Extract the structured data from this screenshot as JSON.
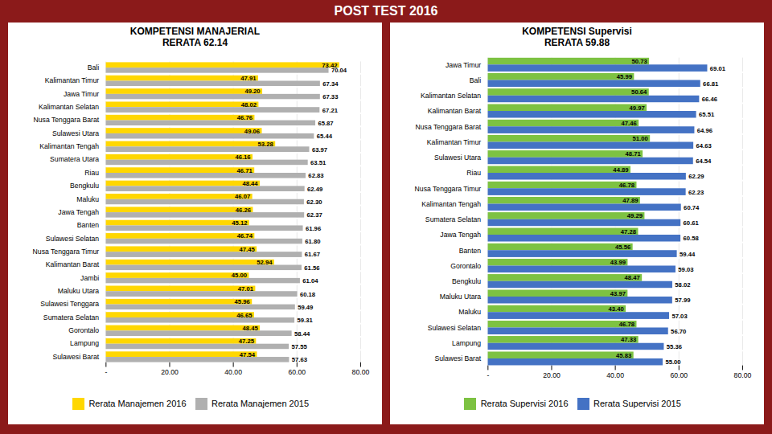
{
  "title": "POST TEST 2016",
  "background_color": "#8B1A1A",
  "chart_data": [
    {
      "type": "bar",
      "orientation": "horizontal",
      "title": "KOMPETENSI MANAJERIAL\nRERATA 62.14",
      "categories": [
        "Bali",
        "Kalimantan Timur",
        "Jawa Timur",
        "Kalimantan Selatan",
        "Nusa Tenggara Barat",
        "Sulawesi Utara",
        "Kalimantan Tengah",
        "Sumatera Utara",
        "Riau",
        "Bengkulu",
        "Maluku",
        "Jawa Tengah",
        "Banten",
        "Sulawesi Selatan",
        "Nusa Tenggara Timur",
        "Kalimantan Barat",
        "Jambi",
        "Maluku Utara",
        "Sulawesi Tenggara",
        "Sumatera Selatan",
        "Gorontalo",
        "Lampung",
        "Sulawesi Barat"
      ],
      "series": [
        {
          "name": "Rerata Manajemen 2016",
          "color": "#FFD700",
          "values": [
            73.42,
            47.91,
            49.2,
            48.02,
            46.76,
            49.06,
            53.28,
            46.16,
            46.71,
            48.44,
            46.07,
            46.26,
            45.12,
            46.74,
            47.45,
            52.94,
            45.0,
            47.01,
            45.96,
            46.65,
            48.45,
            47.25,
            47.54
          ],
          "value_labels": [
            "73.42",
            "47.91",
            "49.20",
            "48.02",
            "46.76",
            "49.06",
            "53.28",
            "46.16",
            "46.71",
            "48.44",
            "46.07",
            "46.26",
            "45.12",
            "46.74",
            "47.45",
            "52.94",
            "45.00",
            "47.01",
            "45.96",
            "46.65",
            "48.45",
            "47.25",
            "47.54"
          ]
        },
        {
          "name": "Rerata Manajemen 2015",
          "color": "#B0B0B0",
          "values": [
            70.04,
            67.34,
            67.33,
            67.21,
            65.87,
            65.44,
            63.97,
            63.51,
            62.83,
            62.49,
            62.3,
            62.37,
            61.96,
            61.8,
            61.67,
            61.56,
            61.04,
            60.18,
            59.49,
            59.31,
            58.44,
            57.55,
            57.63
          ],
          "value_labels": [
            "70.04",
            "67.34",
            "67.33",
            "67.21",
            "65.87",
            "65.44",
            "63.97",
            "63.51",
            "62.83",
            "62.49",
            "62.30",
            "62.37",
            "61.96",
            "61.80",
            "61.67",
            "61.56",
            "61.04",
            "60.18",
            "59.49",
            "59.31",
            "58.44",
            "57.55",
            "57.63"
          ]
        }
      ],
      "xlim": [
        0,
        80
      ],
      "xticks": [
        {
          "value": 0,
          "label": "-"
        },
        {
          "value": 20,
          "label": "20.00"
        },
        {
          "value": 40,
          "label": "40.00"
        },
        {
          "value": 60,
          "label": "60.00"
        },
        {
          "value": 80,
          "label": "80.00"
        }
      ],
      "grid": true,
      "data_labels": true,
      "legend": "bottom"
    },
    {
      "type": "bar",
      "orientation": "horizontal",
      "title": "KOMPETENSI Supervisi\nRERATA 59.88",
      "categories": [
        "Jawa Timur",
        "Bali",
        "Kalimantan Selatan",
        "Kalimantan Barat",
        "Nusa Tenggara Barat",
        "Kalimantan Timur",
        "Sulawesi Utara",
        "Riau",
        "Nusa Tenggara Timur",
        "Kalimantan Tengah",
        "Sumatera Selatan",
        "Jawa Tengah",
        "Banten",
        "Gorontalo",
        "Bengkulu",
        "Maluku Utara",
        "Maluku",
        "Sulawesi Selatan",
        "Lampung",
        "Sulawesi Barat"
      ],
      "series": [
        {
          "name": "Rerata Supervisi 2016",
          "color": "#7DC242",
          "values": [
            50.73,
            45.99,
            50.64,
            49.97,
            47.46,
            51.0,
            48.71,
            44.89,
            46.78,
            47.89,
            49.29,
            47.28,
            45.56,
            43.99,
            48.47,
            43.97,
            43.4,
            46.78,
            47.33,
            45.83
          ],
          "value_labels": [
            "50.73",
            "45.99",
            "50.64",
            "49.97",
            "47.46",
            "51.00",
            "48.71",
            "44.89",
            "46.78",
            "47.89",
            "49.29",
            "47.28",
            "45.56",
            "43.99",
            "48.47",
            "43.97",
            "43.40",
            "46.78",
            "47.33",
            "45.83"
          ]
        },
        {
          "name": "Rerata Supervisi 2015",
          "color": "#4472C4",
          "values": [
            69.01,
            66.81,
            66.46,
            65.51,
            64.96,
            64.63,
            64.54,
            62.29,
            62.23,
            60.74,
            60.61,
            60.58,
            59.44,
            59.03,
            58.02,
            57.99,
            57.03,
            56.7,
            55.36,
            55.0
          ],
          "value_labels": [
            "69.01",
            "66.81",
            "66.46",
            "65.51",
            "64.96",
            "64.63",
            "64.54",
            "62.29",
            "62.23",
            "60.74",
            "60.61",
            "60.58",
            "59.44",
            "59.03",
            "58.02",
            "57.99",
            "57.03",
            "56.70",
            "55.36",
            "55.00"
          ]
        }
      ],
      "xlim": [
        0,
        80
      ],
      "xticks": [
        {
          "value": 0,
          "label": "-"
        },
        {
          "value": 20,
          "label": "20.00"
        },
        {
          "value": 40,
          "label": "40.00"
        },
        {
          "value": 60,
          "label": "60.00"
        },
        {
          "value": 80,
          "label": "80.00"
        }
      ],
      "grid": true,
      "data_labels": true,
      "legend": "bottom"
    }
  ]
}
